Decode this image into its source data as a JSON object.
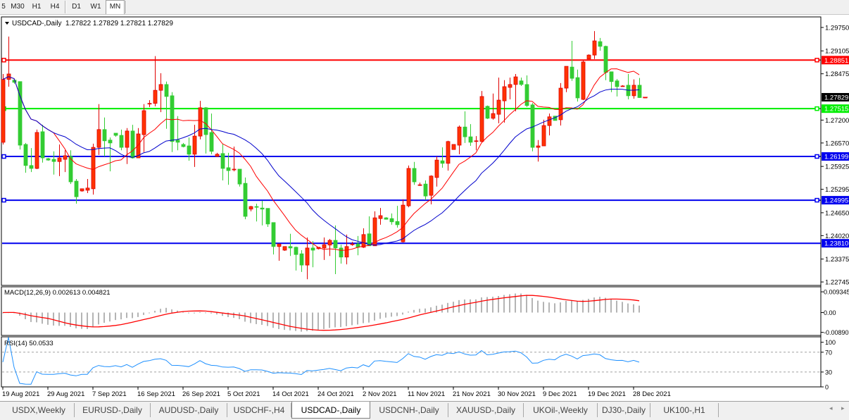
{
  "toolbar": {
    "timeframes": [
      {
        "label": "5"
      },
      {
        "label": "M30"
      },
      {
        "label": "H1"
      },
      {
        "label": "H4"
      },
      {
        "label": "D1"
      },
      {
        "label": "W1"
      },
      {
        "label": "MN",
        "pressed": true
      }
    ]
  },
  "tabs": [
    {
      "label": "USDX,Weekly"
    },
    {
      "label": "EURUSD-,Daily"
    },
    {
      "label": "AUDUSD-,Daily"
    },
    {
      "label": "USDCHF-,H4"
    },
    {
      "label": "USDCAD-,Daily",
      "active": true
    },
    {
      "label": "USDCNH-,Daily"
    },
    {
      "label": "XAUUSD-,Daily"
    },
    {
      "label": "UKOil-,Weekly"
    },
    {
      "label": "DJ30-,Daily"
    },
    {
      "label": "UK100-,H1"
    }
  ],
  "tab_scroll": {
    "left_icon": "◂",
    "right_icon": "▸"
  },
  "chart_data": {
    "type": "candlestick",
    "title": "USDCAD-,Daily",
    "ohlc_readout": "1.27822 1.27829 1.27821 1.27829",
    "ylim": [
      1.2265,
      1.3004
    ],
    "y_ticks": [
      "1.29750",
      "1.29105",
      "1.28475",
      "1.27200",
      "1.26570",
      "1.25925",
      "1.25295",
      "1.24650",
      "1.24020",
      "1.23375",
      "1.22745"
    ],
    "current_price": "1.27829",
    "colors": {
      "bull": "#ff3300",
      "bull_border": "#e00000",
      "bear": "#33cc33",
      "ma_fast": "#ff0000",
      "ma_slow": "#0000cc",
      "macd_hist": "#b4b4b4",
      "macd_signal": "#ff0000",
      "rsi": "#1e90ff"
    },
    "horizontal_lines": [
      {
        "price": "1.28851",
        "color": "#ff0000",
        "marker": true
      },
      {
        "price": "1.27515",
        "color": "#00ee00",
        "marker": true
      },
      {
        "price": "1.26199",
        "color": "#0000ee",
        "marker": true
      },
      {
        "price": "1.24995",
        "color": "#0000ee",
        "marker": true
      },
      {
        "price": "1.23810",
        "color": "#0000ee",
        "marker": false
      }
    ],
    "date_ticks": [
      {
        "label": "19 Aug 2021",
        "bar": 0
      },
      {
        "label": "29 Aug 2021",
        "bar": 8
      },
      {
        "label": "7 Sep 2021",
        "bar": 16
      },
      {
        "label": "16 Sep 2021",
        "bar": 24
      },
      {
        "label": "26 Sep 2021",
        "bar": 32
      },
      {
        "label": "5 Oct 2021",
        "bar": 40
      },
      {
        "label": "14 Oct 2021",
        "bar": 48
      },
      {
        "label": "24 Oct 2021",
        "bar": 56
      },
      {
        "label": "2 Nov 2021",
        "bar": 64
      },
      {
        "label": "11 Nov 2021",
        "bar": 72
      },
      {
        "label": "21 Nov 2021",
        "bar": 80
      },
      {
        "label": "30 Nov 2021",
        "bar": 88
      },
      {
        "label": "9 Dec 2021",
        "bar": 96
      },
      {
        "label": "19 Dec 2021",
        "bar": 104
      },
      {
        "label": "28 Dec 2021",
        "bar": 112
      }
    ],
    "candles": [
      [
        1.2659,
        1.2847,
        1.2653,
        1.2832
      ],
      [
        1.2832,
        1.295,
        1.2812,
        1.2847
      ],
      [
        1.283,
        1.283,
        1.282,
        1.2824
      ],
      [
        1.2826,
        1.2826,
        1.2639,
        1.2651
      ],
      [
        1.2653,
        1.2657,
        1.2575,
        1.2595
      ],
      [
        1.2595,
        1.2643,
        1.2577,
        1.2587
      ],
      [
        1.2587,
        1.2694,
        1.2585,
        1.2686
      ],
      [
        1.2688,
        1.2707,
        1.2603,
        1.2616
      ],
      [
        1.2614,
        1.2616,
        1.2608,
        1.261
      ],
      [
        1.2612,
        1.2634,
        1.257,
        1.2606
      ],
      [
        1.2606,
        1.2653,
        1.2566,
        1.2616
      ],
      [
        1.2612,
        1.2637,
        1.2577,
        1.2622
      ],
      [
        1.262,
        1.2637,
        1.2544,
        1.255
      ],
      [
        1.2552,
        1.2558,
        1.249,
        1.2509
      ],
      [
        1.2525,
        1.2531,
        1.2523,
        1.2531
      ],
      [
        1.2527,
        1.2558,
        1.2519,
        1.2533
      ],
      [
        1.2531,
        1.2655,
        1.2515,
        1.2645
      ],
      [
        1.2645,
        1.2764,
        1.2624,
        1.2694
      ],
      [
        1.2694,
        1.2727,
        1.262,
        1.2663
      ],
      [
        1.2665,
        1.2672,
        1.2579,
        1.2657
      ],
      [
        1.2684,
        1.2684,
        1.2674,
        1.2678
      ],
      [
        1.2678,
        1.2694,
        1.2637,
        1.2645
      ],
      [
        1.2645,
        1.2698,
        1.2599,
        1.269
      ],
      [
        1.269,
        1.2707,
        1.2614,
        1.2616
      ],
      [
        1.2616,
        1.2698,
        1.2616,
        1.2682
      ],
      [
        1.268,
        1.2764,
        1.2632,
        1.2746
      ],
      [
        1.2766,
        1.2775,
        1.2756,
        1.2766
      ],
      [
        1.2766,
        1.2896,
        1.2758,
        1.2802
      ],
      [
        1.2802,
        1.2849,
        1.2742,
        1.2818
      ],
      [
        1.2818,
        1.2826,
        1.2696,
        1.2785
      ],
      [
        1.2787,
        1.2797,
        1.2632,
        1.2661
      ],
      [
        1.2665,
        1.2731,
        1.2637,
        1.2659
      ],
      [
        1.2653,
        1.2657,
        1.2645,
        1.2647
      ],
      [
        1.2649,
        1.2672,
        1.2608,
        1.2626
      ],
      [
        1.2626,
        1.2707,
        1.2591,
        1.2676
      ],
      [
        1.2676,
        1.2773,
        1.2667,
        1.2754
      ],
      [
        1.2754,
        1.2756,
        1.2628,
        1.268
      ],
      [
        1.2686,
        1.2738,
        1.2626,
        1.2634
      ],
      [
        1.262,
        1.263,
        1.262,
        1.2626
      ],
      [
        1.2628,
        1.2655,
        1.2554,
        1.2587
      ],
      [
        1.2589,
        1.263,
        1.2542,
        1.2581
      ],
      [
        1.2583,
        1.2647,
        1.2579,
        1.2585
      ],
      [
        1.2585,
        1.2585,
        1.2537,
        1.2544
      ],
      [
        1.2546,
        1.2562,
        1.2447,
        1.2455
      ],
      [
        1.2475,
        1.2484,
        1.2469,
        1.2482
      ],
      [
        1.2482,
        1.249,
        1.2441,
        1.248
      ],
      [
        1.2478,
        1.2498,
        1.243,
        1.2475
      ],
      [
        1.2477,
        1.2477,
        1.2426,
        1.2434
      ],
      [
        1.2438,
        1.2438,
        1.235,
        1.2372
      ],
      [
        1.2372,
        1.2379,
        1.2333,
        1.2379
      ],
      [
        1.2362,
        1.2372,
        1.236,
        1.2372
      ],
      [
        1.2372,
        1.2407,
        1.2346,
        1.2368
      ],
      [
        1.237,
        1.2372,
        1.2306,
        1.235
      ],
      [
        1.2352,
        1.2362,
        1.2302,
        1.2321
      ],
      [
        1.2321,
        1.2397,
        1.2282,
        1.2368
      ],
      [
        1.2368,
        1.2387,
        1.2315,
        1.2362
      ],
      [
        1.2366,
        1.237,
        1.2364,
        1.237
      ],
      [
        1.2368,
        1.2397,
        1.2335,
        1.2377
      ],
      [
        1.2376,
        1.2393,
        1.2346,
        1.2389
      ],
      [
        1.2389,
        1.243,
        1.2296,
        1.2368
      ],
      [
        1.2368,
        1.2377,
        1.2325,
        1.2343
      ],
      [
        1.2343,
        1.2405,
        1.2323,
        1.2372
      ],
      [
        1.2379,
        1.2385,
        1.2374,
        1.2379
      ],
      [
        1.2379,
        1.2401,
        1.2348,
        1.237
      ],
      [
        1.237,
        1.2422,
        1.2368,
        1.2405
      ],
      [
        1.2407,
        1.2455,
        1.2374,
        1.2374
      ],
      [
        1.2374,
        1.2469,
        1.2374,
        1.2451
      ],
      [
        1.2449,
        1.2478,
        1.2432,
        1.2457
      ],
      [
        1.2451,
        1.2453,
        1.2446,
        1.2447
      ],
      [
        1.2449,
        1.2463,
        1.2432,
        1.244
      ],
      [
        1.2441,
        1.2484,
        1.2424,
        1.2432
      ],
      [
        1.2385,
        1.2502,
        1.2383,
        1.2486
      ],
      [
        1.2484,
        1.2595,
        1.248,
        1.2587
      ],
      [
        1.2587,
        1.2605,
        1.2542,
        1.255
      ],
      [
        1.2542,
        1.2548,
        1.2539,
        1.2542
      ],
      [
        1.2544,
        1.2554,
        1.25,
        1.2511
      ],
      [
        1.2513,
        1.2568,
        1.2488,
        1.2566
      ],
      [
        1.2562,
        1.262,
        1.2537,
        1.261
      ],
      [
        1.2608,
        1.2645,
        1.2589,
        1.2601
      ],
      [
        1.2601,
        1.2663,
        1.2581,
        1.2661
      ],
      [
        1.2639,
        1.2653,
        1.2639,
        1.2653
      ],
      [
        1.2651,
        1.2705,
        1.2626,
        1.2701
      ],
      [
        1.2701,
        1.2744,
        1.2657,
        1.2674
      ],
      [
        1.2674,
        1.2709,
        1.2649,
        1.2659
      ],
      [
        1.2663,
        1.2676,
        1.2637,
        1.2663
      ],
      [
        1.2661,
        1.28,
        1.2659,
        1.2785
      ],
      [
        1.2758,
        1.276,
        1.2723,
        1.2725
      ],
      [
        1.2725,
        1.2793,
        1.2721,
        1.2738
      ],
      [
        1.2736,
        1.2837,
        1.2711,
        1.2775
      ],
      [
        1.2773,
        1.283,
        1.2713,
        1.2812
      ],
      [
        1.281,
        1.2837,
        1.2777,
        1.2818
      ],
      [
        1.2818,
        1.2847,
        1.2744,
        1.2839
      ],
      [
        1.2828,
        1.2837,
        1.2814,
        1.2818
      ],
      [
        1.2818,
        1.2843,
        1.2756,
        1.276
      ],
      [
        1.2762,
        1.2767,
        1.2634,
        1.2645
      ],
      [
        1.2645,
        1.2665,
        1.2606,
        1.2649
      ],
      [
        1.2649,
        1.2721,
        1.2649,
        1.2705
      ],
      [
        1.2705,
        1.2738,
        1.2678,
        1.2729
      ],
      [
        1.2731,
        1.2731,
        1.2719,
        1.2719
      ],
      [
        1.2721,
        1.2822,
        1.2705,
        1.2808
      ],
      [
        1.2808,
        1.2868,
        1.2797,
        1.2868
      ],
      [
        1.2866,
        1.2938,
        1.2828,
        1.2835
      ],
      [
        1.2837,
        1.2859,
        1.2771,
        1.2781
      ],
      [
        1.2777,
        1.2884,
        1.2775,
        1.288
      ],
      [
        1.2888,
        1.2901,
        1.2888,
        1.2899
      ],
      [
        1.2899,
        1.2965,
        1.2888,
        1.2938
      ],
      [
        1.2936,
        1.2946,
        1.2911,
        1.2923
      ],
      [
        1.2923,
        1.2925,
        1.283,
        1.2851
      ],
      [
        1.2853,
        1.2853,
        1.2797,
        1.2826
      ],
      [
        1.2828,
        1.2833,
        1.2785,
        1.2812
      ],
      [
        1.2814,
        1.2816,
        1.2812,
        1.2814
      ],
      [
        1.2816,
        1.2847,
        1.2777,
        1.2787
      ],
      [
        1.2787,
        1.2832,
        1.2779,
        1.2816
      ],
      [
        1.2816,
        1.2836,
        1.2781,
        1.2782
      ],
      [
        1.27822,
        1.27829,
        1.27821,
        1.27829
      ]
    ],
    "macd": {
      "label": "MACD(12,26,9) 0.002613 0.004821",
      "fast": 12,
      "slow": 26,
      "signal": 9,
      "y_ticks": [
        {
          "label": "0.009345",
          "value": 0.009345
        },
        {
          "label": "0.00",
          "value": 0
        },
        {
          "label": "-0.00890",
          "value": -0.0089
        }
      ],
      "ylim": [
        -0.0103,
        0.0116
      ]
    },
    "rsi": {
      "label": "RSI(14) 50.0533",
      "period": 14,
      "levels": [
        70,
        30
      ],
      "y_ticks": [
        {
          "label": "100",
          "value": 100
        },
        {
          "label": "70",
          "value": 70
        },
        {
          "label": "30",
          "value": 30
        },
        {
          "label": "0",
          "value": 0
        }
      ],
      "ylim": [
        0,
        101
      ]
    }
  }
}
